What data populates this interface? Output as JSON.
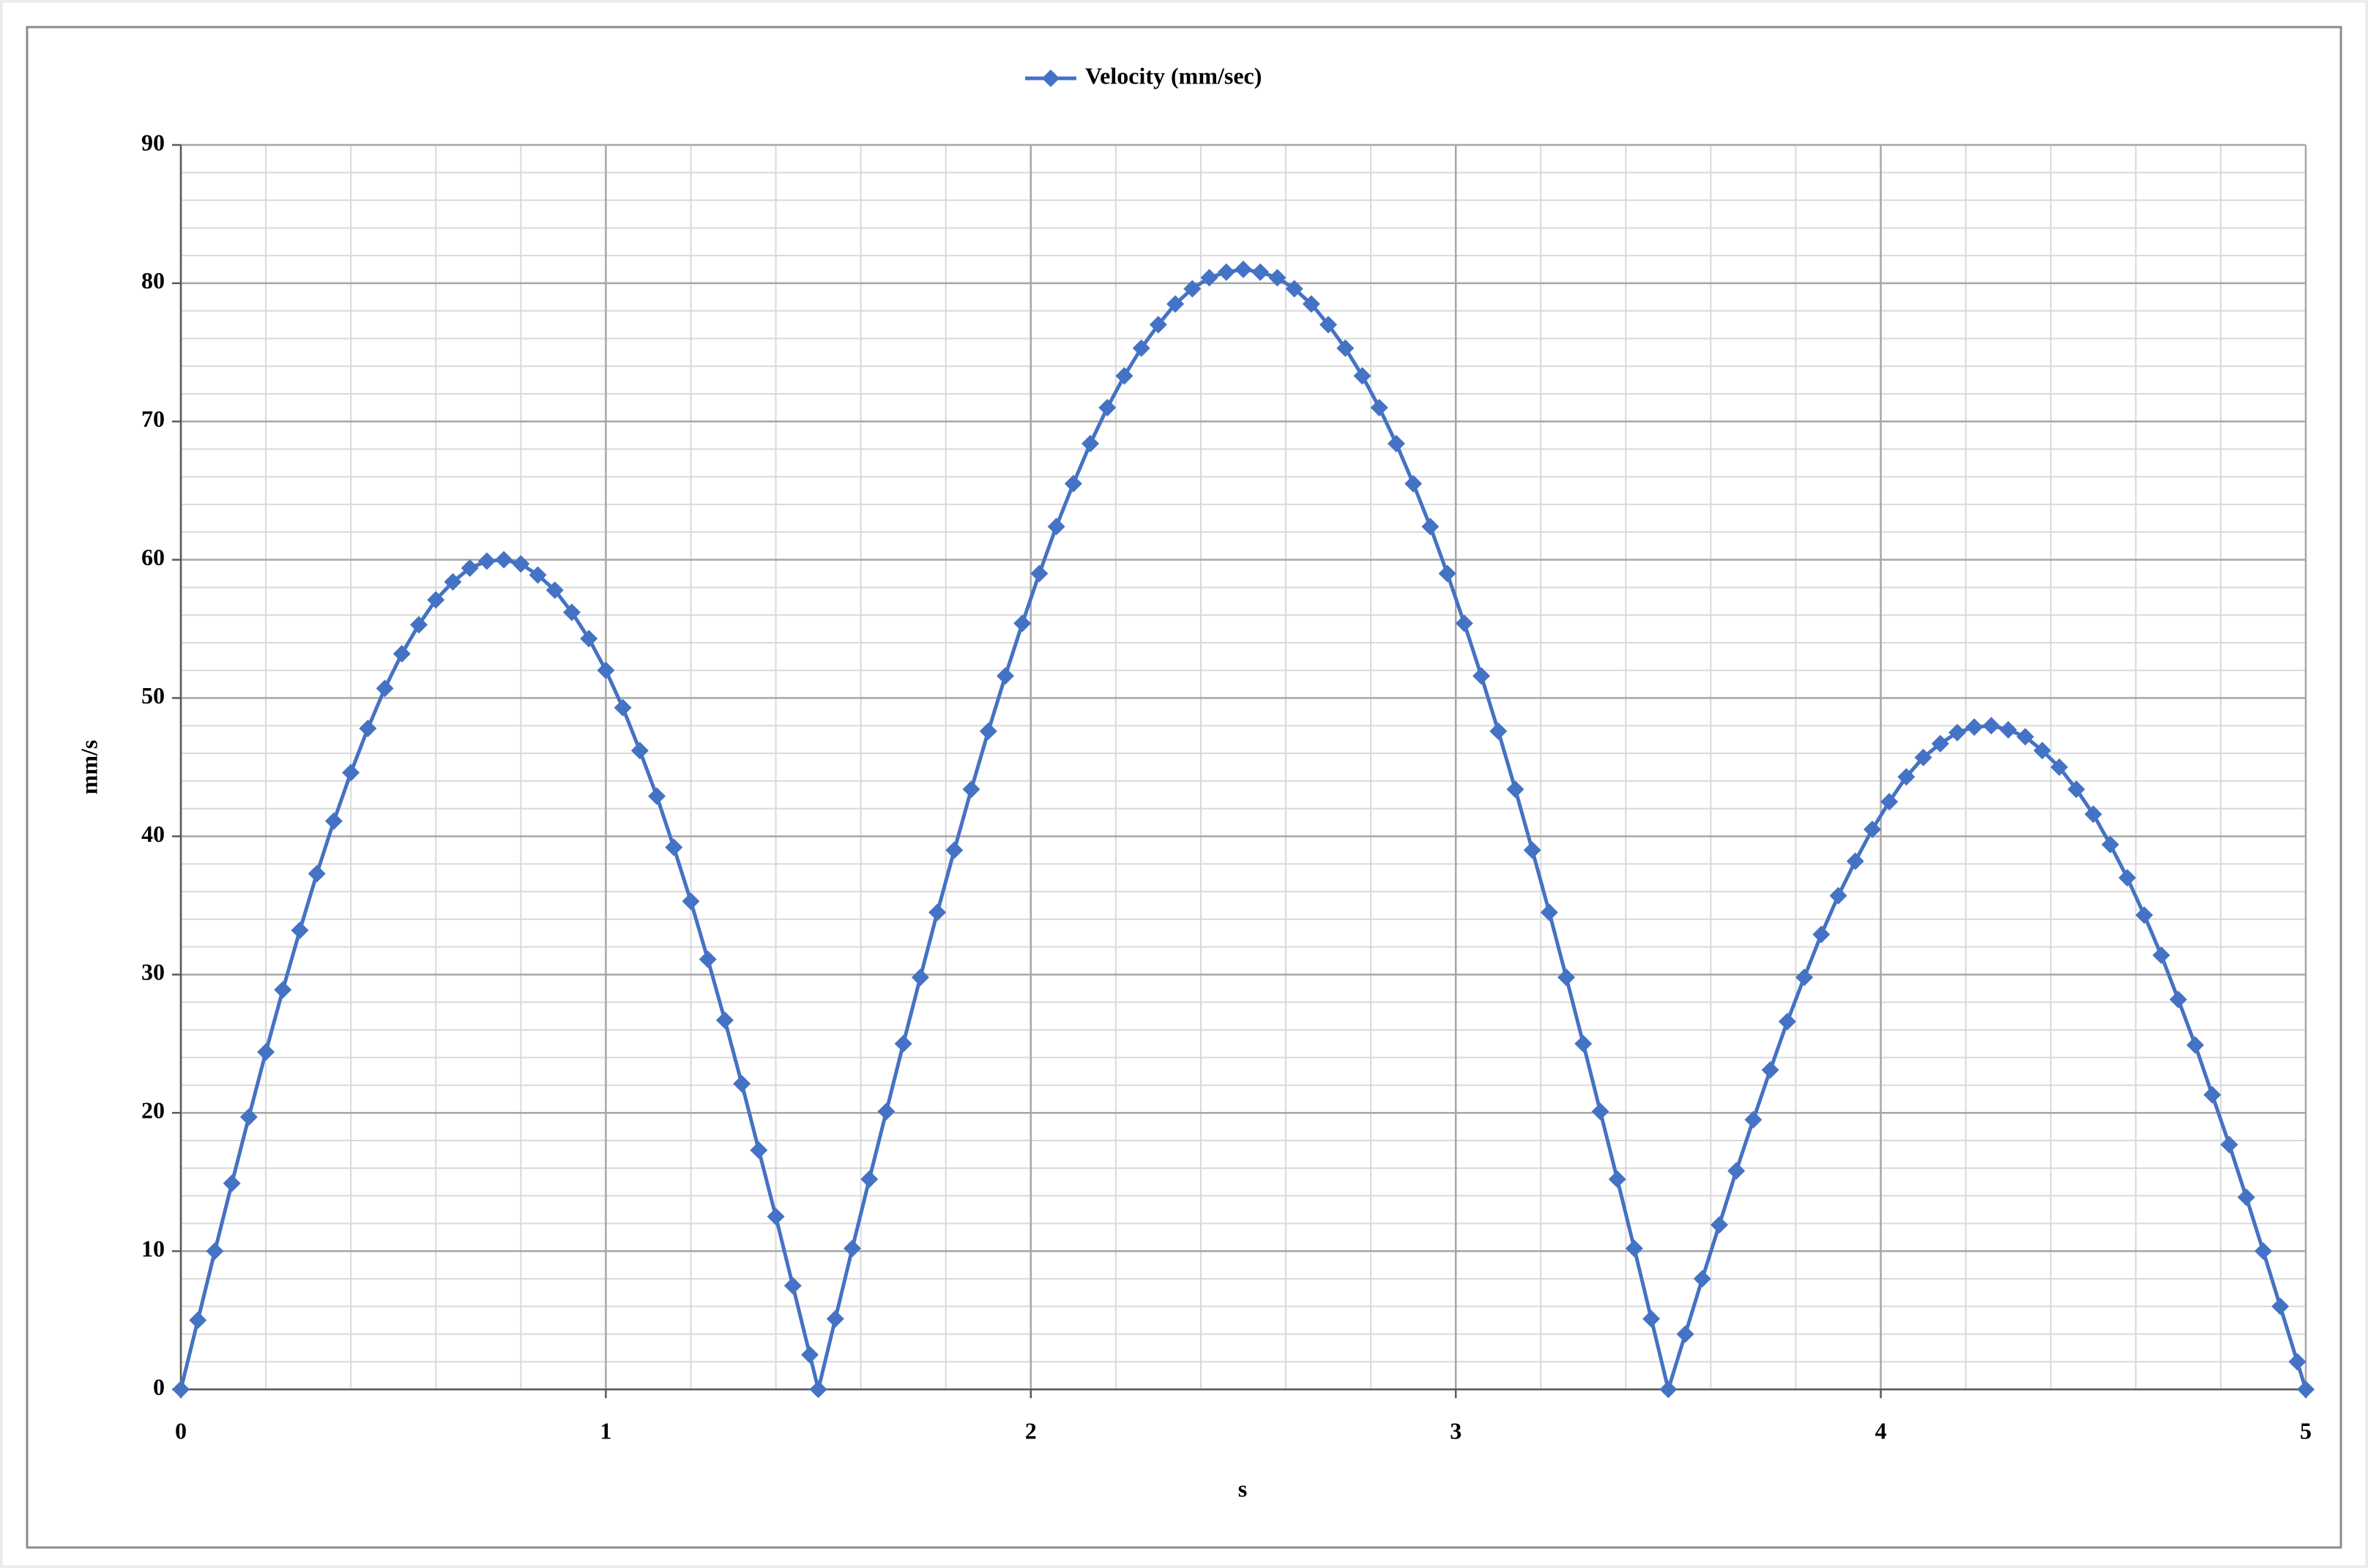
{
  "chart_data": {
    "type": "line",
    "x_label": "s",
    "y_label": "mm/s",
    "x": [
      0,
      0.04,
      0.08,
      0.12,
      0.16,
      0.2,
      0.24,
      0.28,
      0.32,
      0.36,
      0.4,
      0.44,
      0.48,
      0.52,
      0.56,
      0.6,
      0.64,
      0.68,
      0.72,
      0.76,
      0.8,
      0.84,
      0.88,
      0.92,
      0.96,
      1,
      1.04,
      1.08,
      1.12,
      1.16,
      1.2,
      1.24,
      1.28,
      1.32,
      1.36,
      1.4,
      1.44,
      1.48,
      1.5,
      1.54,
      1.58,
      1.62,
      1.66,
      1.7,
      1.74,
      1.78,
      1.82,
      1.86,
      1.9,
      1.94,
      1.98,
      2.02,
      2.06,
      2.1,
      2.14,
      2.18,
      2.22,
      2.26,
      2.3,
      2.34,
      2.38,
      2.42,
      2.46,
      2.5,
      2.54,
      2.58,
      2.62,
      2.66,
      2.7,
      2.74,
      2.78,
      2.82,
      2.86,
      2.9,
      2.94,
      2.98,
      3.02,
      3.06,
      3.1,
      3.14,
      3.18,
      3.22,
      3.26,
      3.3,
      3.34,
      3.38,
      3.42,
      3.46,
      3.5,
      3.54,
      3.58,
      3.62,
      3.66,
      3.7,
      3.74,
      3.78,
      3.82,
      3.86,
      3.9,
      3.94,
      3.98,
      4.02,
      4.06,
      4.1,
      4.14,
      4.18,
      4.22,
      4.26,
      4.3,
      4.34,
      4.38,
      4.42,
      4.46,
      4.5,
      4.54,
      4.58,
      4.62,
      4.66,
      4.7,
      4.74,
      4.78,
      4.82,
      4.86,
      4.9,
      4.94,
      4.98,
      5
    ],
    "series": [
      {
        "name": "Velocity (mm/sec)",
        "color": "#4472c4",
        "values": [
          0,
          5.0,
          10.0,
          14.9,
          19.7,
          24.4,
          28.9,
          33.2,
          37.3,
          41.1,
          44.6,
          47.8,
          50.7,
          53.2,
          55.3,
          57.1,
          58.4,
          59.4,
          59.9,
          60.0,
          59.7,
          58.9,
          57.8,
          56.2,
          54.3,
          52.0,
          49.3,
          46.2,
          42.9,
          39.2,
          35.3,
          31.1,
          26.7,
          22.1,
          17.3,
          12.5,
          7.5,
          2.5,
          0,
          5.1,
          10.2,
          15.2,
          20.1,
          25.0,
          29.8,
          34.5,
          39.0,
          43.4,
          47.6,
          51.6,
          55.4,
          59.0,
          62.4,
          65.5,
          68.4,
          71.0,
          73.3,
          75.3,
          77.0,
          78.5,
          79.6,
          80.4,
          80.8,
          81.0,
          80.8,
          80.4,
          79.6,
          78.5,
          77.0,
          75.3,
          73.3,
          71.0,
          68.4,
          65.5,
          62.4,
          59.0,
          55.4,
          51.6,
          47.6,
          43.4,
          39.0,
          34.5,
          29.8,
          25.0,
          20.1,
          15.2,
          10.2,
          5.1,
          0,
          4.0,
          8.0,
          11.9,
          15.8,
          19.5,
          23.1,
          26.6,
          29.8,
          32.9,
          35.7,
          38.2,
          40.5,
          42.5,
          44.3,
          45.7,
          46.7,
          47.5,
          47.9,
          48.0,
          47.7,
          47.2,
          46.2,
          45.0,
          43.4,
          41.6,
          39.4,
          37.0,
          34.3,
          31.4,
          28.2,
          24.9,
          21.3,
          17.7,
          13.9,
          10.0,
          6.0,
          2.0,
          0
        ]
      }
    ],
    "xlim": [
      0,
      5
    ],
    "xticks": [
      0,
      1,
      2,
      3,
      4,
      5
    ],
    "ylim": [
      0,
      90
    ],
    "yticks": [
      0,
      10,
      20,
      30,
      40,
      50,
      60,
      70,
      80,
      90
    ],
    "grid": true,
    "legend": "top"
  }
}
